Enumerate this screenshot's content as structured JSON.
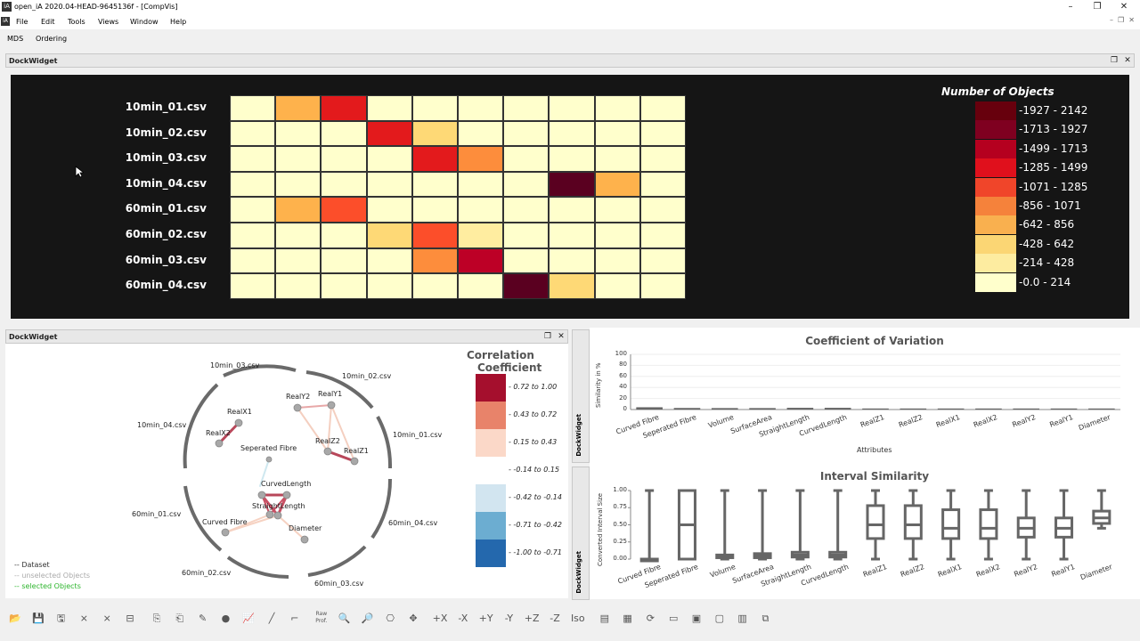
{
  "window": {
    "title": "open_iA 2020.04-HEAD-9645136f - [CompVis]",
    "app_icon": "iA"
  },
  "menu": [
    "File",
    "Edit",
    "Tools",
    "Views",
    "Window",
    "Help"
  ],
  "sub_toolbar": [
    "MDS",
    "Ordering"
  ],
  "docks": {
    "top_title": "DockWidget",
    "graph_title": "DockWidget",
    "vtab1": "DockWidget",
    "vtab2": "DockWidget"
  },
  "heatmap": {
    "rows": [
      "10min_01.csv",
      "10min_02.csv",
      "10min_03.csv",
      "10min_04.csv",
      "60min_01.csv",
      "60min_02.csv",
      "60min_03.csv",
      "60min_04.csv"
    ],
    "colors": [
      "#ffffcc",
      "#ffeda0",
      "#fed976",
      "#feb24c",
      "#fd8d3c",
      "#fc4e2a",
      "#e31a1c",
      "#bd0026",
      "#800026",
      "#5a0020"
    ],
    "cells": [
      [
        0,
        3,
        6,
        0,
        0,
        0,
        0,
        0,
        0,
        0
      ],
      [
        0,
        0,
        0,
        6,
        2,
        0,
        0,
        0,
        0,
        0
      ],
      [
        0,
        0,
        0,
        0,
        6,
        4,
        0,
        0,
        0,
        0
      ],
      [
        0,
        0,
        0,
        0,
        0,
        0,
        0,
        9,
        3,
        0
      ],
      [
        0,
        3,
        5,
        0,
        0,
        0,
        0,
        0,
        0,
        0
      ],
      [
        0,
        0,
        0,
        2,
        5,
        1,
        0,
        0,
        0,
        0
      ],
      [
        0,
        0,
        0,
        0,
        4,
        7,
        0,
        0,
        0,
        0
      ],
      [
        0,
        0,
        0,
        0,
        0,
        0,
        9,
        2,
        0,
        0
      ]
    ],
    "legend_title": "Number of Objects",
    "legend": [
      {
        "label": "1927 - 2142",
        "color": "#67000d"
      },
      {
        "label": "1713 - 1927",
        "color": "#7f0020"
      },
      {
        "label": "1499 - 1713",
        "color": "#b5001f"
      },
      {
        "label": "1285 - 1499",
        "color": "#e0101c"
      },
      {
        "label": "1071 - 1285",
        "color": "#f0452a"
      },
      {
        "label": "856 - 1071",
        "color": "#f5823b"
      },
      {
        "label": "642 - 856",
        "color": "#f9b04f"
      },
      {
        "label": "428 - 642",
        "color": "#fbd674"
      },
      {
        "label": "214 - 428",
        "color": "#fdeca0"
      },
      {
        "label": "0.0 - 214",
        "color": "#ffffcc"
      }
    ]
  },
  "graph": {
    "datasets": [
      "10min_03.csv",
      "10min_02.csv",
      "10min_01.csv",
      "60min_04.csv",
      "60min_03.csv",
      "60min_02.csv",
      "60min_01.csv",
      "10min_04.csv"
    ],
    "nodes": [
      "RealY2",
      "RealY1",
      "RealX1",
      "RealX2",
      "RealZ2",
      "RealZ1",
      "Seperated Fibre",
      "CurvedLength",
      "StraightLength",
      "Curved Fibre",
      "Diameter"
    ],
    "legend": {
      "dataset": "Dataset",
      "unselected": "unselected Objects",
      "selected": "selected Objects"
    },
    "cc_title_1": "Correlation",
    "cc_title_2": "Coefficient",
    "cc": [
      {
        "label": "0.72 to 1.00",
        "color": "#a50f2d"
      },
      {
        "label": "0.43 to 0.72",
        "color": "#e8836a"
      },
      {
        "label": "0.15 to 0.43",
        "color": "#fbd8c8"
      },
      {
        "label": "-0.14 to 0.15",
        "color": "#ffffff"
      },
      {
        "label": "-0.42 to -0.14",
        "color": "#d2e5f0"
      },
      {
        "label": "-0.71 to -0.42",
        "color": "#6cadd1"
      },
      {
        "label": "-1.00 to -0.71",
        "color": "#2468ad"
      }
    ]
  },
  "chart_data": [
    {
      "type": "bar",
      "title": "Coefficient of Variation",
      "xlabel": "Attributes",
      "ylabel": "Similarity in %",
      "ylim": [
        0,
        100
      ],
      "yticks": [
        "100",
        "80",
        "60",
        "40",
        "20",
        "0"
      ],
      "categories": [
        "Curved Fibre",
        "Seperated Fibre",
        "Volume",
        "SurfaceArea",
        "StraightLength",
        "CurvedLength",
        "RealZ1",
        "RealZ2",
        "RealX1",
        "RealX2",
        "RealY2",
        "RealY1",
        "Diameter"
      ],
      "values": [
        2.5,
        1.2,
        1.0,
        1.0,
        1.5,
        1.5,
        0.3,
        0.3,
        0.3,
        0.3,
        0.3,
        0.3,
        0.3
      ]
    },
    {
      "type": "boxplot",
      "title": "Interval Similarity",
      "ylabel": "Converted Interval Size",
      "ylim": [
        0,
        1
      ],
      "yticks": [
        "1.00",
        "0.75",
        "0.50",
        "0.25",
        "0.00"
      ],
      "categories": [
        "Curved Fibre",
        "Seperated Fibre",
        "Volume",
        "SurfaceArea",
        "StraightLength",
        "CurvedLength",
        "RealZ1",
        "RealZ2",
        "RealX1",
        "RealX2",
        "RealY2",
        "RealY1",
        "Diameter"
      ],
      "boxes": [
        {
          "min": 0.0,
          "q1": 0.0,
          "median": 0.0,
          "q3": 0.0,
          "max": 1.0
        },
        {
          "min": 0.0,
          "q1": 0.0,
          "median": 0.5,
          "q3": 1.0,
          "max": 1.0
        },
        {
          "min": 0.0,
          "q1": 0.02,
          "median": 0.04,
          "q3": 0.06,
          "max": 1.0
        },
        {
          "min": 0.0,
          "q1": 0.02,
          "median": 0.05,
          "q3": 0.08,
          "max": 1.0
        },
        {
          "min": 0.0,
          "q1": 0.03,
          "median": 0.06,
          "q3": 0.1,
          "max": 1.0
        },
        {
          "min": 0.0,
          "q1": 0.03,
          "median": 0.06,
          "q3": 0.1,
          "max": 1.0
        },
        {
          "min": 0.0,
          "q1": 0.3,
          "median": 0.5,
          "q3": 0.78,
          "max": 1.0
        },
        {
          "min": 0.0,
          "q1": 0.3,
          "median": 0.5,
          "q3": 0.78,
          "max": 1.0
        },
        {
          "min": 0.0,
          "q1": 0.3,
          "median": 0.45,
          "q3": 0.72,
          "max": 1.0
        },
        {
          "min": 0.0,
          "q1": 0.3,
          "median": 0.45,
          "q3": 0.72,
          "max": 1.0
        },
        {
          "min": 0.0,
          "q1": 0.32,
          "median": 0.45,
          "q3": 0.6,
          "max": 1.0
        },
        {
          "min": 0.0,
          "q1": 0.32,
          "median": 0.45,
          "q3": 0.6,
          "max": 1.0
        },
        {
          "min": 0.45,
          "q1": 0.52,
          "median": 0.6,
          "q3": 0.7,
          "max": 1.0
        }
      ]
    }
  ],
  "toolbar_icons": [
    "open-icon",
    "save-icon",
    "save-as-icon",
    "filter-icon",
    "filter2-icon",
    "slider-icon",
    "dataset-icon",
    "dataset2-icon",
    "edit-icon",
    "sphere-icon",
    "chart-icon",
    "line-icon",
    "profile-icon",
    "raw-profile-icon",
    "zoom-icon",
    "zoom-fit-icon",
    "camera-icon",
    "move-icon",
    "plus-x-icon",
    "minus-x-icon",
    "plus-y-icon",
    "minus-y-icon",
    "plus-z-icon",
    "minus-z-icon",
    "iso-icon",
    "layout-icon",
    "layout2-icon",
    "refresh-icon",
    "layer-icon",
    "save-state-icon",
    "folder-icon",
    "grid-icon",
    "export-icon"
  ],
  "toolbar_labels": {
    "raw_prof_1": "Raw",
    "raw_prof_2": "Prof.",
    "px": "+X",
    "mx": "-X",
    "py": "+Y",
    "my": "-Y",
    "pz": "+Z",
    "mz": "-Z",
    "iso": "Iso"
  }
}
